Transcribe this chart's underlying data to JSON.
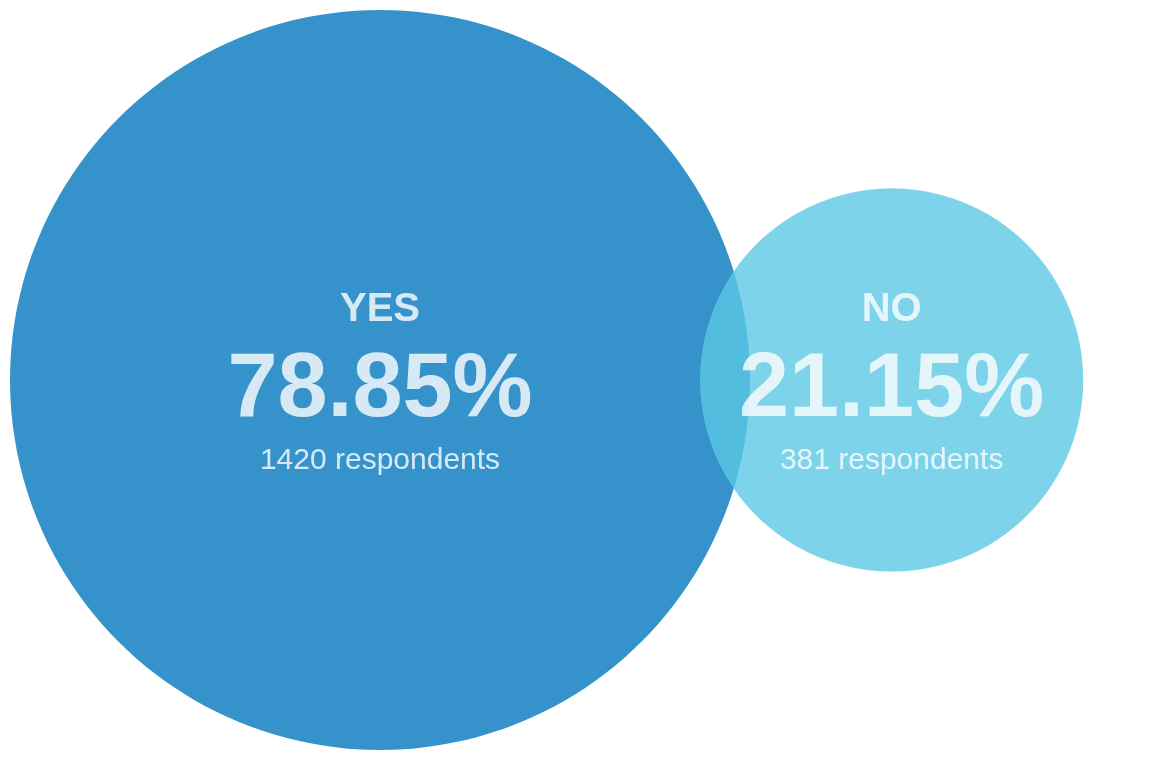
{
  "chart_data": {
    "type": "other",
    "categories": [
      "YES",
      "NO"
    ],
    "values": [
      78.85,
      21.15
    ],
    "value_labels": [
      "78.85%",
      "21.15%"
    ],
    "colors": [
      "#0277bd",
      "#5bc8e5"
    ],
    "annotations": [
      {
        "text": "1420 respondents",
        "x": "YES"
      },
      {
        "text": "381 respondents",
        "x": "NO"
      }
    ]
  }
}
